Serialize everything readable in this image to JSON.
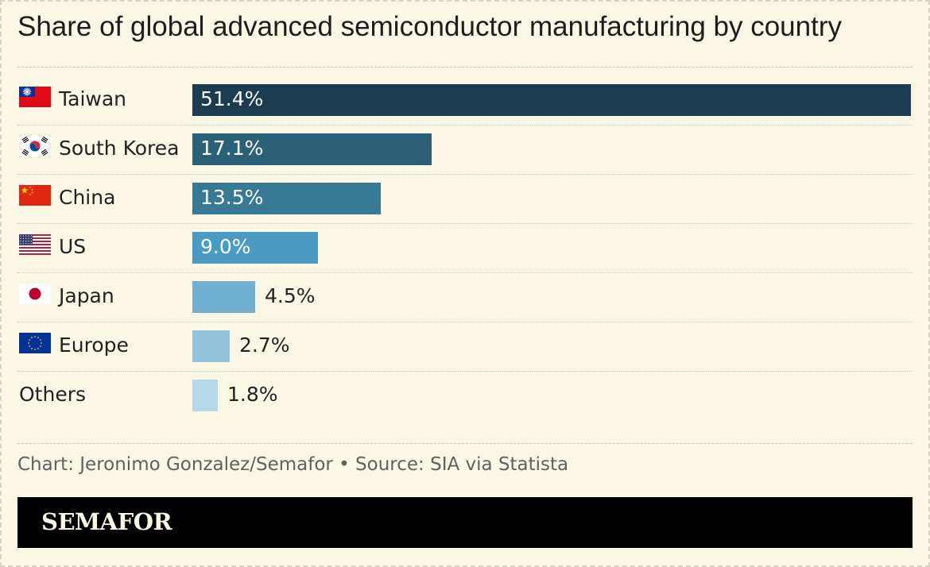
{
  "title": "Share of global advanced semiconductor manufacturing by country",
  "credit": "Chart: Jeronimo Gonzalez/Semafor • Source: SIA via Statista",
  "brand": "SEMAFOR",
  "chart_data": {
    "type": "bar",
    "orientation": "horizontal",
    "title": "Share of global advanced semiconductor manufacturing by country",
    "categories": [
      "Taiwan",
      "South Korea",
      "China",
      "US",
      "Japan",
      "Europe",
      "Others"
    ],
    "values": [
      51.4,
      17.1,
      13.5,
      9.0,
      4.5,
      2.7,
      1.8
    ],
    "value_labels": [
      "51.4%",
      "17.1%",
      "13.5%",
      "9.0%",
      "4.5%",
      "2.7%",
      "1.8%"
    ],
    "unit": "%",
    "flags": [
      "taiwan-flag",
      "south-korea-flag",
      "china-flag",
      "us-flag",
      "japan-flag",
      "eu-flag",
      null
    ],
    "colors": [
      "#1c3d4f",
      "#2b6079",
      "#367a96",
      "#4a9bc4",
      "#6fb0d2",
      "#94c3dc",
      "#b7d8e8"
    ],
    "xlim": [
      0,
      51.4
    ],
    "grid": false,
    "legend": "none"
  }
}
